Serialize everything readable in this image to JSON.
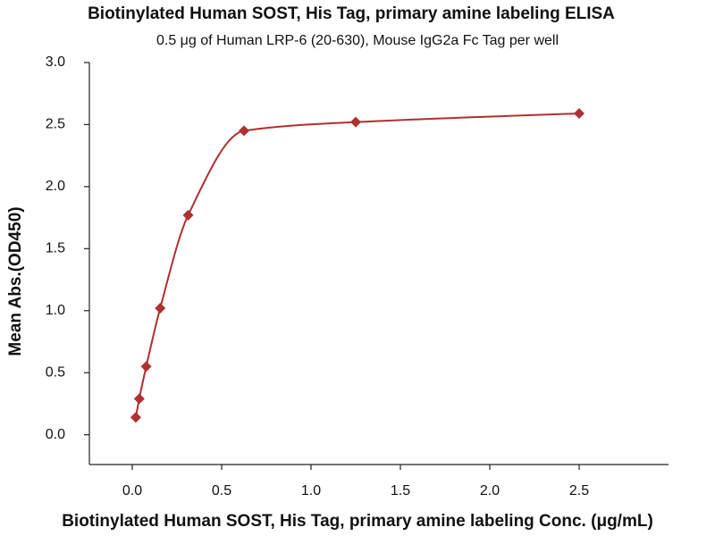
{
  "chart_data": {
    "type": "line",
    "title": "Biotinylated Human SOST, His Tag, primary amine labeling ELISA",
    "subtitle": "0.5 μg of Human LRP-6 (20-630), Mouse IgG2a Fc Tag per well",
    "x_label": "Biotinylated Human SOST, His Tag, primary amine labeling Conc. (μg/mL)",
    "y_label": "Mean Abs.(OD450)",
    "x": [
      0.0195,
      0.039,
      0.078,
      0.156,
      0.3125,
      0.625,
      1.25,
      2.5
    ],
    "values": [
      0.14,
      0.29,
      0.55,
      1.02,
      1.77,
      2.45,
      2.52,
      2.59
    ],
    "color": "#b03030",
    "xlim": [
      -0.24,
      3.0
    ],
    "ylim": [
      -0.24,
      3.0
    ],
    "xticks": [
      {
        "value": 0,
        "label": "0.0"
      },
      0.5,
      {
        "value": 1,
        "label": "1.0"
      },
      1.5,
      {
        "value": 2,
        "label": "2.0"
      },
      2.5
    ],
    "yticks": [
      {
        "value": 0,
        "label": "0.0"
      },
      0.5,
      {
        "value": 1,
        "label": "1.0"
      },
      1.5,
      {
        "value": 2,
        "label": "2.0"
      },
      2.5,
      {
        "value": 3,
        "label": "3.0"
      }
    ],
    "grid": false
  }
}
